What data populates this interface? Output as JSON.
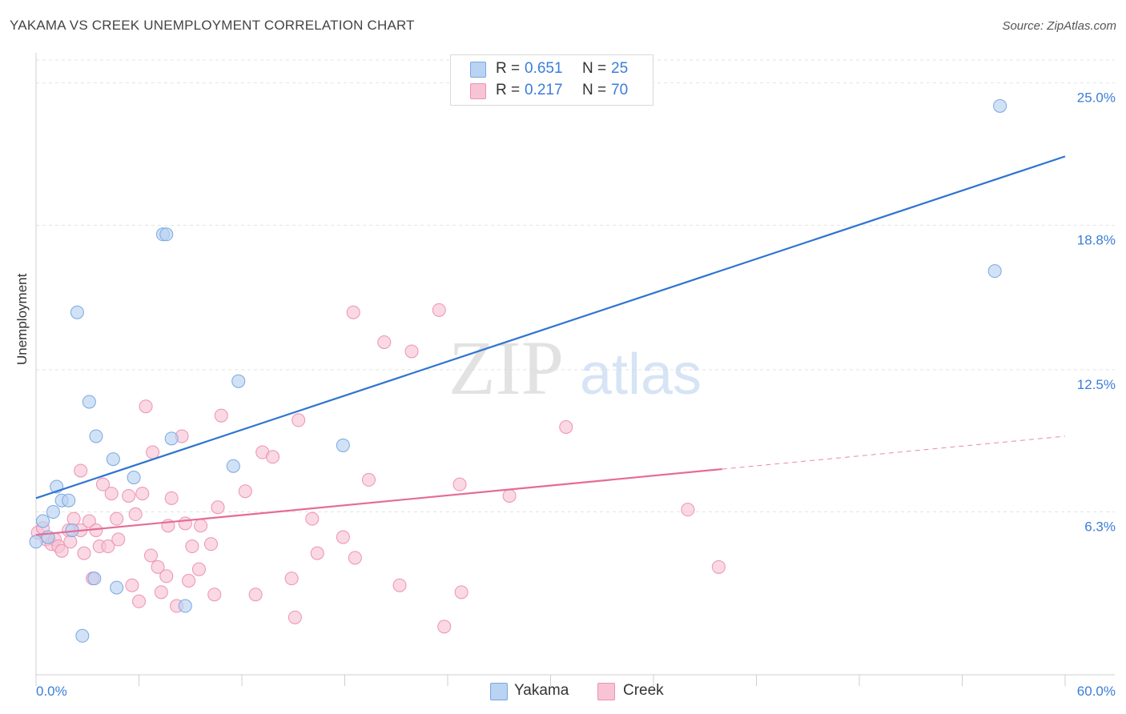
{
  "title": "YAKAMA VS CREEK UNEMPLOYMENT CORRELATION CHART",
  "source": "Source: ZipAtlas.com",
  "watermark": {
    "zip": "ZIP",
    "atlas": "atlas"
  },
  "legend": {
    "items": [
      {
        "r_label": "R = ",
        "r_value": "0.651",
        "n_label": "N = ",
        "n_value": "25"
      },
      {
        "r_label": "R = ",
        "r_value": "0.217",
        "n_label": "N = ",
        "n_value": "70"
      }
    ]
  },
  "colors": {
    "yakama_fill": "#b9d3f3",
    "yakama_stroke": "#7aa7e0",
    "yakama_line": "#2f74d0",
    "creek_fill": "#f8c3d5",
    "creek_stroke": "#ec93b1",
    "creek_line": "#e56b98",
    "axis_label": "#3b7dd8",
    "grid": "#e3e3e3"
  },
  "chart_data": {
    "type": "scatter",
    "title": "YAKAMA VS CREEK UNEMPLOYMENT CORRELATION CHART",
    "xlabel": "",
    "ylabel": "Unemployment",
    "xlim": [
      0,
      60
    ],
    "ylim": [
      -0.8,
      26.0
    ],
    "x_tick_labels": [
      "0.0%",
      "60.0%"
    ],
    "y_ticks": [
      6.3,
      12.5,
      18.8,
      25.0
    ],
    "y_tick_labels": [
      "6.3%",
      "12.5%",
      "18.8%",
      "25.0%"
    ],
    "series": [
      {
        "name": "Yakama",
        "r": 0.651,
        "n": 25,
        "trend": {
          "x": [
            0,
            60
          ],
          "y": [
            6.9,
            21.8
          ],
          "dashed_from": null
        },
        "points": [
          [
            0.0,
            5.0
          ],
          [
            0.4,
            5.9
          ],
          [
            0.7,
            5.2
          ],
          [
            1.0,
            6.3
          ],
          [
            1.2,
            7.4
          ],
          [
            1.5,
            6.8
          ],
          [
            1.9,
            6.8
          ],
          [
            2.1,
            5.5
          ],
          [
            2.4,
            15.0
          ],
          [
            3.1,
            11.1
          ],
          [
            3.4,
            3.4
          ],
          [
            3.5,
            9.6
          ],
          [
            4.5,
            8.6
          ],
          [
            4.7,
            3.0
          ],
          [
            5.7,
            7.8
          ],
          [
            7.4,
            18.4
          ],
          [
            7.6,
            18.4
          ],
          [
            7.9,
            9.5
          ],
          [
            8.7,
            2.2
          ],
          [
            11.5,
            8.3
          ],
          [
            11.8,
            12.0
          ],
          [
            17.9,
            9.2
          ],
          [
            56.2,
            24.0
          ],
          [
            55.9,
            16.8
          ],
          [
            2.7,
            0.9
          ]
        ]
      },
      {
        "name": "Creek",
        "r": 0.217,
        "n": 70,
        "trend": {
          "x": [
            0,
            60
          ],
          "y": [
            5.3,
            9.6
          ],
          "dashed_from": 40
        },
        "points": [
          [
            0.1,
            5.4
          ],
          [
            0.4,
            5.6
          ],
          [
            0.6,
            5.1
          ],
          [
            0.9,
            4.9
          ],
          [
            1.1,
            5.1
          ],
          [
            1.3,
            4.8
          ],
          [
            1.5,
            4.6
          ],
          [
            1.9,
            5.5
          ],
          [
            2.0,
            5.0
          ],
          [
            2.2,
            6.0
          ],
          [
            2.6,
            5.5
          ],
          [
            2.6,
            8.1
          ],
          [
            2.8,
            4.5
          ],
          [
            3.1,
            5.9
          ],
          [
            3.3,
            3.4
          ],
          [
            3.5,
            5.5
          ],
          [
            3.7,
            4.8
          ],
          [
            3.9,
            7.5
          ],
          [
            4.2,
            4.8
          ],
          [
            4.4,
            7.1
          ],
          [
            4.7,
            6.0
          ],
          [
            4.8,
            5.1
          ],
          [
            5.4,
            7.0
          ],
          [
            5.6,
            3.1
          ],
          [
            5.8,
            6.2
          ],
          [
            6.0,
            2.4
          ],
          [
            6.2,
            7.1
          ],
          [
            6.4,
            10.9
          ],
          [
            6.7,
            4.4
          ],
          [
            6.8,
            8.9
          ],
          [
            7.1,
            3.9
          ],
          [
            7.3,
            2.8
          ],
          [
            7.6,
            3.5
          ],
          [
            7.7,
            5.7
          ],
          [
            7.9,
            6.9
          ],
          [
            8.2,
            2.2
          ],
          [
            8.5,
            9.6
          ],
          [
            8.7,
            5.8
          ],
          [
            8.9,
            3.3
          ],
          [
            9.1,
            4.8
          ],
          [
            9.5,
            3.8
          ],
          [
            9.6,
            5.7
          ],
          [
            10.2,
            4.9
          ],
          [
            10.4,
            2.7
          ],
          [
            10.6,
            6.5
          ],
          [
            10.8,
            10.5
          ],
          [
            12.2,
            7.2
          ],
          [
            12.8,
            2.7
          ],
          [
            13.2,
            8.9
          ],
          [
            13.8,
            8.7
          ],
          [
            14.9,
            3.4
          ],
          [
            15.3,
            10.3
          ],
          [
            15.1,
            1.7
          ],
          [
            16.1,
            6.0
          ],
          [
            16.4,
            4.5
          ],
          [
            17.9,
            5.2
          ],
          [
            18.5,
            15.0
          ],
          [
            18.6,
            4.3
          ],
          [
            19.4,
            7.7
          ],
          [
            20.3,
            13.7
          ],
          [
            21.2,
            3.1
          ],
          [
            21.9,
            13.3
          ],
          [
            23.5,
            15.1
          ],
          [
            23.8,
            1.3
          ],
          [
            24.7,
            7.5
          ],
          [
            24.8,
            2.8
          ],
          [
            27.6,
            7.0
          ],
          [
            30.9,
            10.0
          ],
          [
            38.0,
            6.4
          ],
          [
            39.8,
            3.9
          ]
        ]
      }
    ],
    "legend_position": "top-center"
  },
  "bottom_legend": [
    "Yakama",
    "Creek"
  ]
}
